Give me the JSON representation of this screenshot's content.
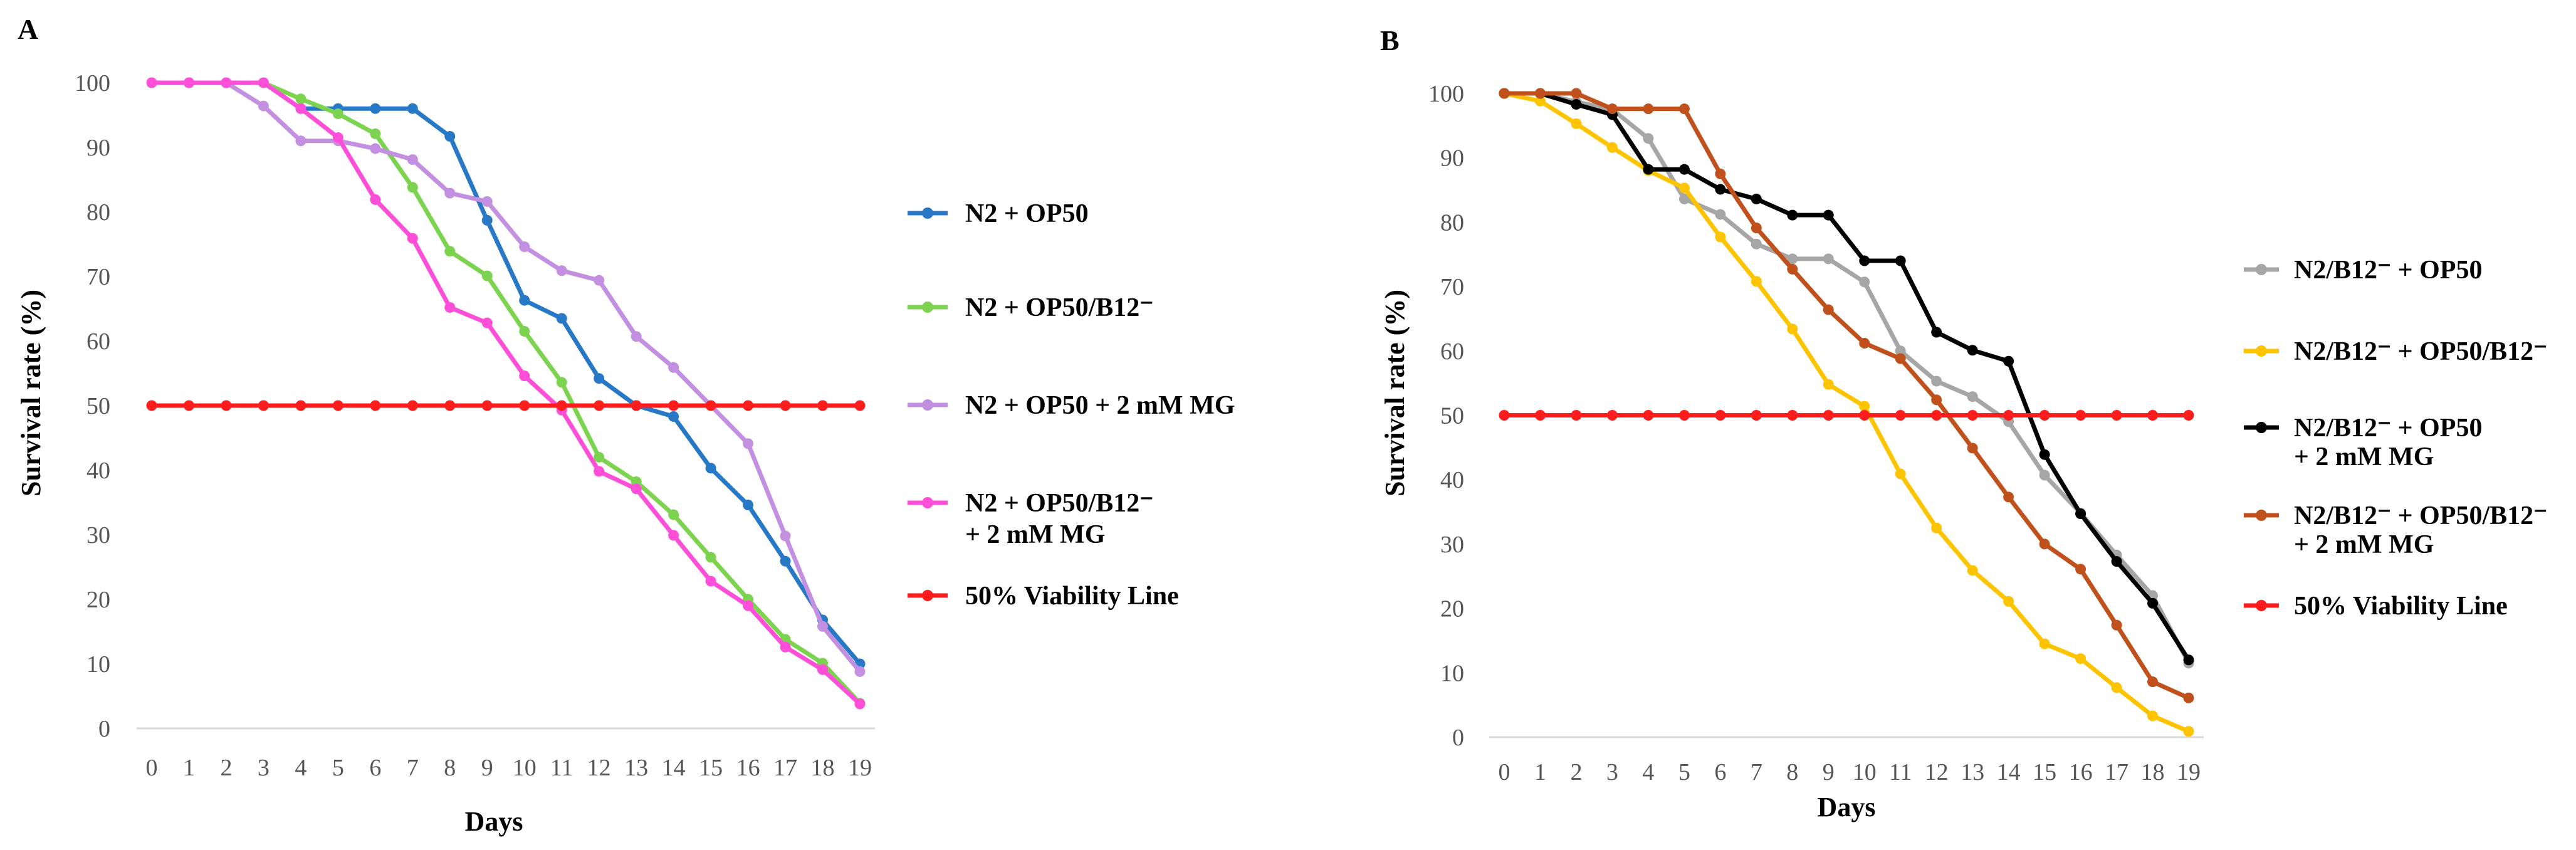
{
  "chart_data": [
    {
      "panel": "A",
      "type": "line",
      "xlabel": "Days",
      "ylabel": "Survival rate (%)",
      "xlim": [
        0,
        19
      ],
      "ylim": [
        0,
        100
      ],
      "x": [
        0,
        1,
        2,
        3,
        4,
        5,
        6,
        7,
        8,
        9,
        10,
        11,
        12,
        13,
        14,
        15,
        16,
        17,
        18,
        19
      ],
      "x_tick_labels": [
        "0",
        "1",
        "2",
        "3",
        "4",
        "5",
        "6",
        "7",
        "8",
        "9",
        "10",
        "11",
        "12",
        "13",
        "14",
        "15",
        "16",
        "17",
        "18",
        "19"
      ],
      "y_tick_labels": [
        "0",
        "10",
        "20",
        "30",
        "40",
        "50",
        "60",
        "70",
        "80",
        "90",
        "100"
      ],
      "series": [
        {
          "name": "N2 + OP50",
          "legend_lines": [
            "N2 + OP50"
          ],
          "color": "#2878c8",
          "values": [
            100,
            100,
            100,
            100,
            96,
            96,
            96,
            96,
            91.7,
            78.7,
            66.3,
            63.5,
            54.2,
            50,
            48.3,
            40.3,
            34.6,
            25.9,
            16.8,
            10
          ]
        },
        {
          "name": "N2 + OP50/B12⁻",
          "legend_lines": [
            "N2 + OP50/B12⁻"
          ],
          "color": "#7cd34f",
          "values": [
            100,
            100,
            100,
            100,
            97.5,
            95.2,
            92.1,
            83.8,
            73.9,
            70.1,
            61.5,
            53.6,
            42,
            38.2,
            33.1,
            26.5,
            20,
            13.8,
            10.1,
            3.9
          ]
        },
        {
          "name": "N2 + OP50 + 2 mM MG",
          "legend_lines": [
            "N2 + OP50 + 2 mM MG"
          ],
          "color": "#c38fe0",
          "values": [
            100,
            100,
            100,
            96.4,
            91,
            91,
            89.8,
            88.1,
            82.9,
            81.6,
            74.6,
            70.9,
            69.4,
            60.7,
            55.9,
            50,
            44.1,
            29.8,
            15.8,
            8.8
          ]
        },
        {
          "name": "N2 + OP50/B12⁻ + 2 mM MG",
          "legend_lines": [
            "N2 + OP50/B12⁻",
            "+ 2 mM MG"
          ],
          "color": "#ff4fd8",
          "values": [
            100,
            100,
            100,
            100,
            96,
            91.5,
            81.9,
            75.9,
            65.2,
            62.8,
            54.6,
            49.3,
            39.8,
            37.1,
            29.9,
            22.8,
            19,
            12.6,
            9.1,
            3.8
          ]
        },
        {
          "name": "50% Viability Line",
          "legend_lines": [
            "50% Viability Line"
          ],
          "color": "#ff1c1c",
          "values": [
            50,
            50,
            50,
            50,
            50,
            50,
            50,
            50,
            50,
            50,
            50,
            50,
            50,
            50,
            50,
            50,
            50,
            50,
            50,
            50
          ]
        }
      ]
    },
    {
      "panel": "B",
      "type": "line",
      "xlabel": "Days",
      "ylabel": "Survival rate (%)",
      "xlim": [
        0,
        19
      ],
      "ylim": [
        0,
        100
      ],
      "x": [
        0,
        1,
        2,
        3,
        4,
        5,
        6,
        7,
        8,
        9,
        10,
        11,
        12,
        13,
        14,
        15,
        16,
        17,
        18,
        19
      ],
      "x_tick_labels": [
        "0",
        "1",
        "2",
        "3",
        "4",
        "5",
        "6",
        "7",
        "8",
        "9",
        "10",
        "11",
        "12",
        "13",
        "14",
        "15",
        "16",
        "17",
        "18",
        "19"
      ],
      "y_tick_labels": [
        "0",
        "10",
        "20",
        "30",
        "40",
        "50",
        "60",
        "70",
        "80",
        "90",
        "100"
      ],
      "series": [
        {
          "name": "N2/B12⁻ + OP50",
          "legend_lines": [
            "N2/B12⁻ + OP50"
          ],
          "color": "#a6a6a6",
          "values": [
            100,
            100,
            98.7,
            97.5,
            93,
            83.6,
            81.2,
            76.6,
            74.3,
            74.3,
            70.7,
            60,
            55.3,
            52.9,
            49,
            40.7,
            34.8,
            28.3,
            22,
            11.5
          ]
        },
        {
          "name": "N2/B12⁻ + OP50/B12⁻",
          "legend_lines": [
            "N2/B12⁻ + OP50/B12⁻"
          ],
          "color": "#ffc400",
          "values": [
            100,
            98.8,
            95.3,
            91.6,
            88,
            85.3,
            77.7,
            70.8,
            63.4,
            54.8,
            51.4,
            40.9,
            32.5,
            25.9,
            21.1,
            14.5,
            12.2,
            7.7,
            3.3,
            0.9
          ]
        },
        {
          "name": "N2/B12⁻ + OP50 + 2 mM MG",
          "legend_lines": [
            "N2/B12⁻ + OP50",
            "+ 2 mM MG"
          ],
          "color": "#000000",
          "values": [
            100,
            100,
            98.3,
            96.7,
            88.2,
            88.2,
            85.1,
            83.6,
            81.1,
            81.1,
            74,
            74,
            62.9,
            60.1,
            58.4,
            43.9,
            34.7,
            27.3,
            20.8,
            12
          ]
        },
        {
          "name": "N2/B12⁻ + OP50/B12⁻ + 2 mM MG",
          "legend_lines": [
            "N2/B12⁻ + OP50/B12⁻",
            "+ 2 mM MG"
          ],
          "color": "#c0501c",
          "values": [
            100,
            100,
            100,
            97.6,
            97.6,
            97.6,
            87.5,
            79.1,
            72.7,
            66.4,
            61.2,
            58.8,
            52.4,
            44.9,
            37.3,
            30,
            26.1,
            17.4,
            8.6,
            6.1
          ]
        },
        {
          "name": "50% Viability Line",
          "legend_lines": [
            "50% Viability Line"
          ],
          "color": "#ff1c1c",
          "values": [
            50,
            50,
            50,
            50,
            50,
            50,
            50,
            50,
            50,
            50,
            50,
            50,
            50,
            50,
            50,
            50,
            50,
            50,
            50,
            50
          ]
        }
      ]
    }
  ]
}
